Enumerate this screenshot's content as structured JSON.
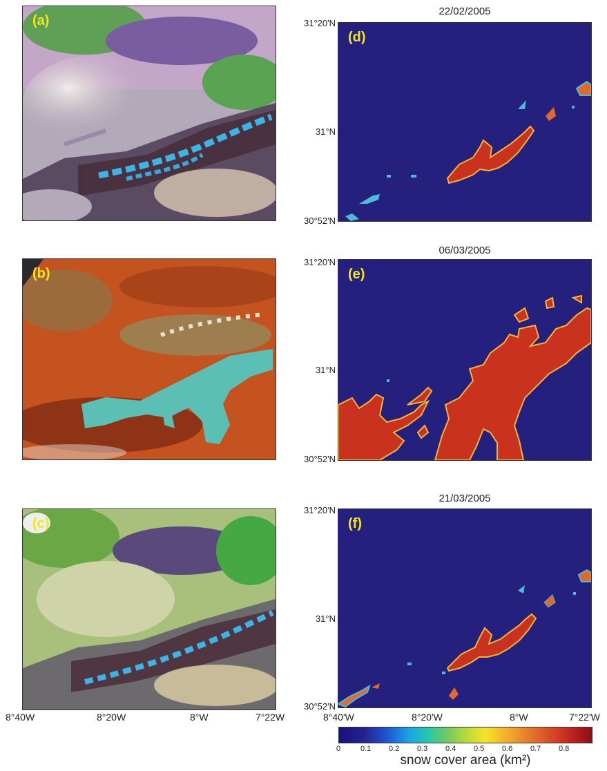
{
  "panels": {
    "a": {
      "label": "(a)"
    },
    "b": {
      "label": "(b)"
    },
    "c": {
      "label": "(c)"
    },
    "d": {
      "label": "(d)",
      "date": "22/02/2005"
    },
    "e": {
      "label": "(e)",
      "date": "06/03/2005"
    },
    "f": {
      "label": "(f)",
      "date": "21/03/2005"
    }
  },
  "lat_labels": {
    "top": "31°20'N",
    "mid": "31°N",
    "bottom": "30°52'N"
  },
  "lon_labels": [
    "8°40W",
    "8°20W",
    "8°W",
    "7°22W"
  ],
  "lon_labels_right": [
    "8°40'W",
    "8°20'W",
    "8°W",
    "7°22'W"
  ],
  "colorbar": {
    "ticks": [
      "0",
      "0.1",
      "0.2",
      "0.3",
      "0.4",
      "0.5",
      "0.6",
      "0.7",
      "0.8"
    ],
    "label": "snow cover area (km²)",
    "colormap": [
      "#1b0f7e",
      "#1f5dd6",
      "#1aa8e2",
      "#25c6b0",
      "#c4de35",
      "#f7e327",
      "#e06a2b",
      "#8e0d14"
    ]
  },
  "colors": {
    "background": "#25207e",
    "snow_high": "#c9321f",
    "snow_sat": "#4fb9d8",
    "label": "#f3e61a"
  }
}
